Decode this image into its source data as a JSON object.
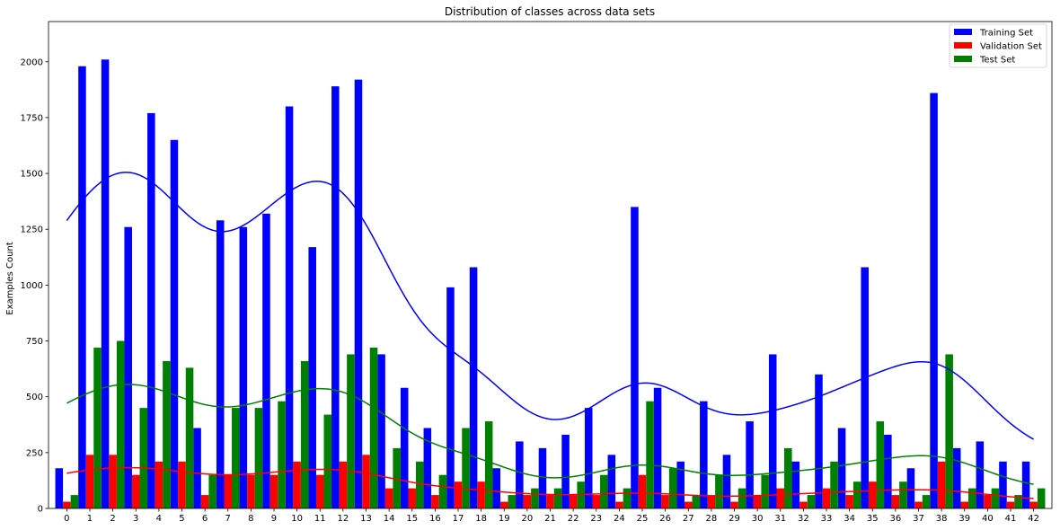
{
  "chart_data": {
    "type": "bar",
    "title": "Distribution of classes across data sets",
    "xlabel": "",
    "ylabel": "Examples Count",
    "categories": [
      "0",
      "1",
      "2",
      "3",
      "4",
      "5",
      "6",
      "7",
      "8",
      "9",
      "10",
      "11",
      "12",
      "13",
      "14",
      "15",
      "16",
      "17",
      "18",
      "19",
      "20",
      "21",
      "22",
      "23",
      "24",
      "25",
      "26",
      "27",
      "28",
      "29",
      "30",
      "31",
      "32",
      "33",
      "34",
      "35",
      "36",
      "37",
      "38",
      "39",
      "40",
      "41",
      "42"
    ],
    "yticks": [
      0,
      250,
      500,
      750,
      1000,
      1250,
      1500,
      1750,
      2000
    ],
    "ylim": [
      0,
      2180
    ],
    "grid": false,
    "legend_position": "top-right",
    "series": [
      {
        "name": "Training Set",
        "color": "#0000ff",
        "values": [
          180,
          1980,
          2010,
          1260,
          1770,
          1650,
          360,
          1290,
          1260,
          1320,
          1800,
          1170,
          1890,
          1920,
          690,
          540,
          360,
          990,
          1080,
          180,
          300,
          270,
          330,
          450,
          240,
          1350,
          540,
          210,
          480,
          240,
          390,
          690,
          210,
          600,
          360,
          1080,
          330,
          180,
          1860,
          270,
          300,
          210,
          210
        ]
      },
      {
        "name": "Validation Set",
        "color": "#ff0000",
        "values": [
          30,
          240,
          240,
          150,
          210,
          210,
          60,
          150,
          150,
          150,
          210,
          150,
          210,
          240,
          90,
          90,
          60,
          120,
          120,
          30,
          60,
          60,
          60,
          60,
          30,
          150,
          60,
          30,
          60,
          30,
          60,
          90,
          30,
          90,
          60,
          120,
          60,
          30,
          210,
          30,
          60,
          30,
          30
        ]
      },
      {
        "name": "Test Set",
        "color": "#008000",
        "values": [
          60,
          720,
          750,
          450,
          660,
          630,
          150,
          450,
          450,
          480,
          660,
          420,
          690,
          720,
          270,
          210,
          150,
          360,
          390,
          60,
          90,
          90,
          120,
          150,
          90,
          480,
          180,
          60,
          150,
          90,
          150,
          270,
          60,
          210,
          120,
          390,
          120,
          60,
          690,
          90,
          90,
          60,
          90
        ]
      }
    ]
  }
}
